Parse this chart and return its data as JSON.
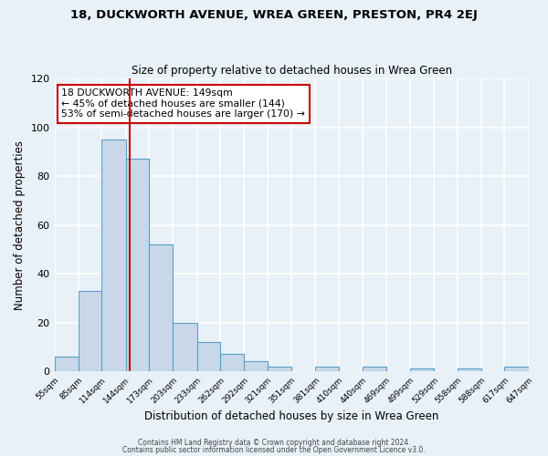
{
  "title": "18, DUCKWORTH AVENUE, WREA GREEN, PRESTON, PR4 2EJ",
  "subtitle": "Size of property relative to detached houses in Wrea Green",
  "xlabel": "Distribution of detached houses by size in Wrea Green",
  "ylabel": "Number of detached properties",
  "bin_edges": [
    55,
    85,
    114,
    144,
    173,
    203,
    233,
    262,
    292,
    321,
    351,
    381,
    410,
    440,
    469,
    499,
    529,
    558,
    588,
    617,
    647
  ],
  "bar_heights": [
    6,
    33,
    95,
    87,
    52,
    20,
    12,
    7,
    4,
    2,
    0,
    2,
    0,
    2,
    0,
    1,
    0,
    1,
    0,
    2
  ],
  "bar_color": "#c8d8e8",
  "bar_edge_color": "#5a9fc8",
  "bg_color": "#e8f0f8",
  "grid_color": "#ffffff",
  "red_line_x": 149,
  "annotation_text": "18 DUCKWORTH AVENUE: 149sqm\n← 45% of detached houses are smaller (144)\n53% of semi-detached houses are larger (170) →",
  "annotation_box_color": "#ffffff",
  "annotation_box_edge": "#cc0000",
  "ylim": [
    0,
    120
  ],
  "yticks": [
    0,
    20,
    40,
    60,
    80,
    100,
    120
  ],
  "footer_line1": "Contains HM Land Registry data © Crown copyright and database right 2024.",
  "footer_line2": "Contains public sector information licensed under the Open Government Licence v3.0."
}
